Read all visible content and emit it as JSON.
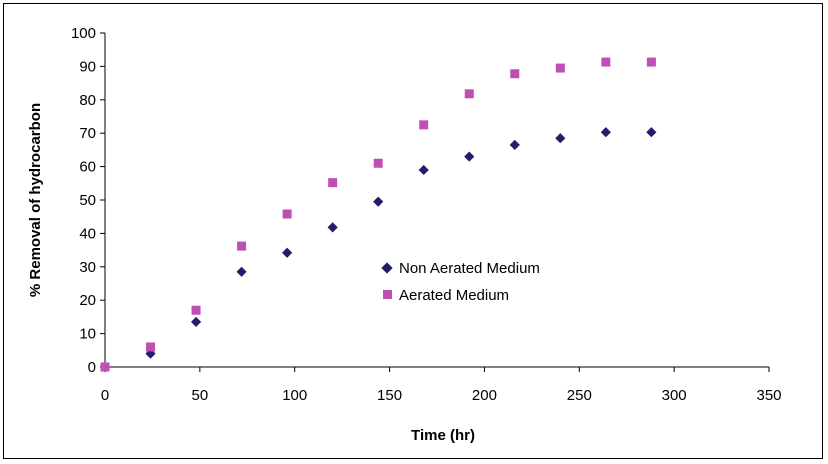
{
  "chart_data": {
    "type": "scatter",
    "xlabel": "Time (hr)",
    "ylabel": "% Removal of hydrocarbon",
    "xlim": [
      0,
      350
    ],
    "ylim": [
      0,
      100
    ],
    "xticks": [
      0,
      50,
      100,
      150,
      200,
      250,
      300,
      350
    ],
    "yticks": [
      0,
      10,
      20,
      30,
      40,
      50,
      60,
      70,
      80,
      90,
      100
    ],
    "grid": false,
    "legend_position": "center-right",
    "series": [
      {
        "name": "Non Aerated Medium",
        "marker": "diamond",
        "color": "#1f1f6b",
        "points": [
          [
            0,
            0
          ],
          [
            24,
            4
          ],
          [
            48,
            13.5
          ],
          [
            72,
            28.5
          ],
          [
            96,
            34.2
          ],
          [
            120,
            41.8
          ],
          [
            144,
            49.5
          ],
          [
            168,
            59
          ],
          [
            192,
            63
          ],
          [
            216,
            66.5
          ],
          [
            240,
            68.5
          ],
          [
            264,
            70.3
          ],
          [
            288,
            70.3
          ]
        ]
      },
      {
        "name": "Aerated Medium",
        "marker": "square",
        "color": "#bf4fb3",
        "points": [
          [
            0,
            0
          ],
          [
            24,
            6
          ],
          [
            48,
            17
          ],
          [
            72,
            36.2
          ],
          [
            96,
            45.8
          ],
          [
            120,
            55.2
          ],
          [
            144,
            61
          ],
          [
            168,
            72.5
          ],
          [
            192,
            81.8
          ],
          [
            216,
            87.8
          ],
          [
            240,
            89.5
          ],
          [
            264,
            91.3
          ],
          [
            288,
            91.3
          ]
        ]
      }
    ]
  }
}
